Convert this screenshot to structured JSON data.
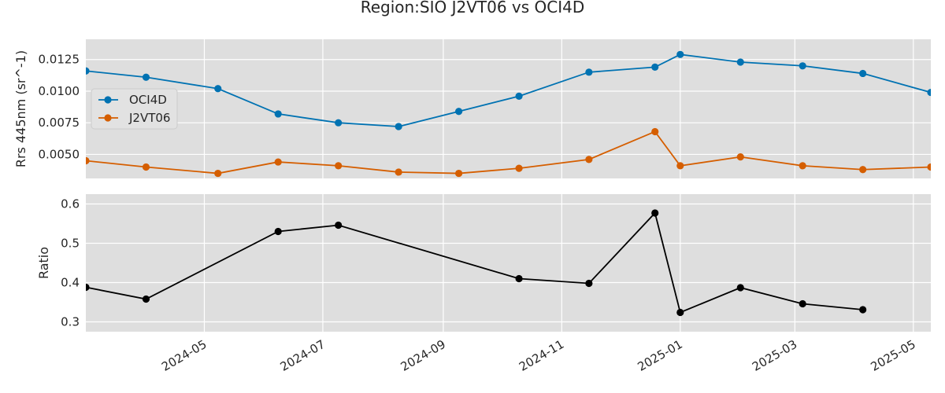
{
  "chart_data": {
    "type": "line",
    "title": "Region:SIO J2VT06 vs OCI4D",
    "xlim": [
      "2024-03-01",
      "2025-05-10"
    ],
    "x_ticks": [
      "2024-05",
      "2024-07",
      "2024-09",
      "2024-11",
      "2025-01",
      "2025-03",
      "2025-05"
    ],
    "panels": [
      {
        "ylabel": "Rrs 445nm (sr^-1)",
        "ylim": [
          0.0031,
          0.0141
        ],
        "y_ticks": [
          "0.0050",
          "0.0075",
          "0.0100",
          "0.0125"
        ],
        "y_tick_values": [
          0.005,
          0.0075,
          0.01,
          0.0125
        ],
        "legend_position": "upper-left",
        "series": [
          {
            "name": "OCI4D",
            "color": "#0072b2",
            "x": [
              "2024-03-01",
              "2024-04-01",
              "2024-05-08",
              "2024-06-08",
              "2024-07-09",
              "2024-08-09",
              "2024-09-09",
              "2024-10-10",
              "2024-11-15",
              "2024-12-19",
              "2025-01-01",
              "2025-02-01",
              "2025-03-05",
              "2025-04-05",
              "2025-05-10"
            ],
            "values": [
              0.0116,
              0.0111,
              0.0102,
              0.0082,
              0.0075,
              0.0072,
              0.0084,
              0.0096,
              0.0115,
              0.0119,
              0.0129,
              0.0123,
              0.012,
              0.0114,
              0.0099
            ]
          },
          {
            "name": "J2VT06",
            "color": "#d55e00",
            "x": [
              "2024-03-01",
              "2024-04-01",
              "2024-05-08",
              "2024-06-08",
              "2024-07-09",
              "2024-08-09",
              "2024-09-09",
              "2024-10-10",
              "2024-11-15",
              "2024-12-19",
              "2025-01-01",
              "2025-02-01",
              "2025-03-05",
              "2025-04-05",
              "2025-05-10"
            ],
            "values": [
              0.0045,
              0.004,
              0.0035,
              0.0044,
              0.0041,
              0.0036,
              0.0035,
              0.0039,
              0.0046,
              0.0068,
              0.0041,
              0.0048,
              0.0041,
              0.0038,
              0.004
            ]
          }
        ]
      },
      {
        "ylabel": "Ratio",
        "ylim": [
          0.275,
          0.625
        ],
        "y_ticks": [
          "0.3",
          "0.4",
          "0.5",
          "0.6"
        ],
        "y_tick_values": [
          0.3,
          0.4,
          0.5,
          0.6
        ],
        "series": [
          {
            "color": "#000000",
            "x": [
              "2024-03-01",
              "2024-04-01",
              "2024-06-08",
              "2024-07-09",
              "2024-10-10",
              "2024-11-15",
              "2024-12-19",
              "2025-01-01",
              "2025-02-01",
              "2025-03-05",
              "2025-04-05"
            ],
            "values": [
              0.388,
              0.358,
              0.53,
              0.546,
              0.41,
              0.398,
              0.577,
              0.324,
              0.387,
              0.346,
              0.331
            ]
          }
        ]
      }
    ],
    "grid": true
  }
}
